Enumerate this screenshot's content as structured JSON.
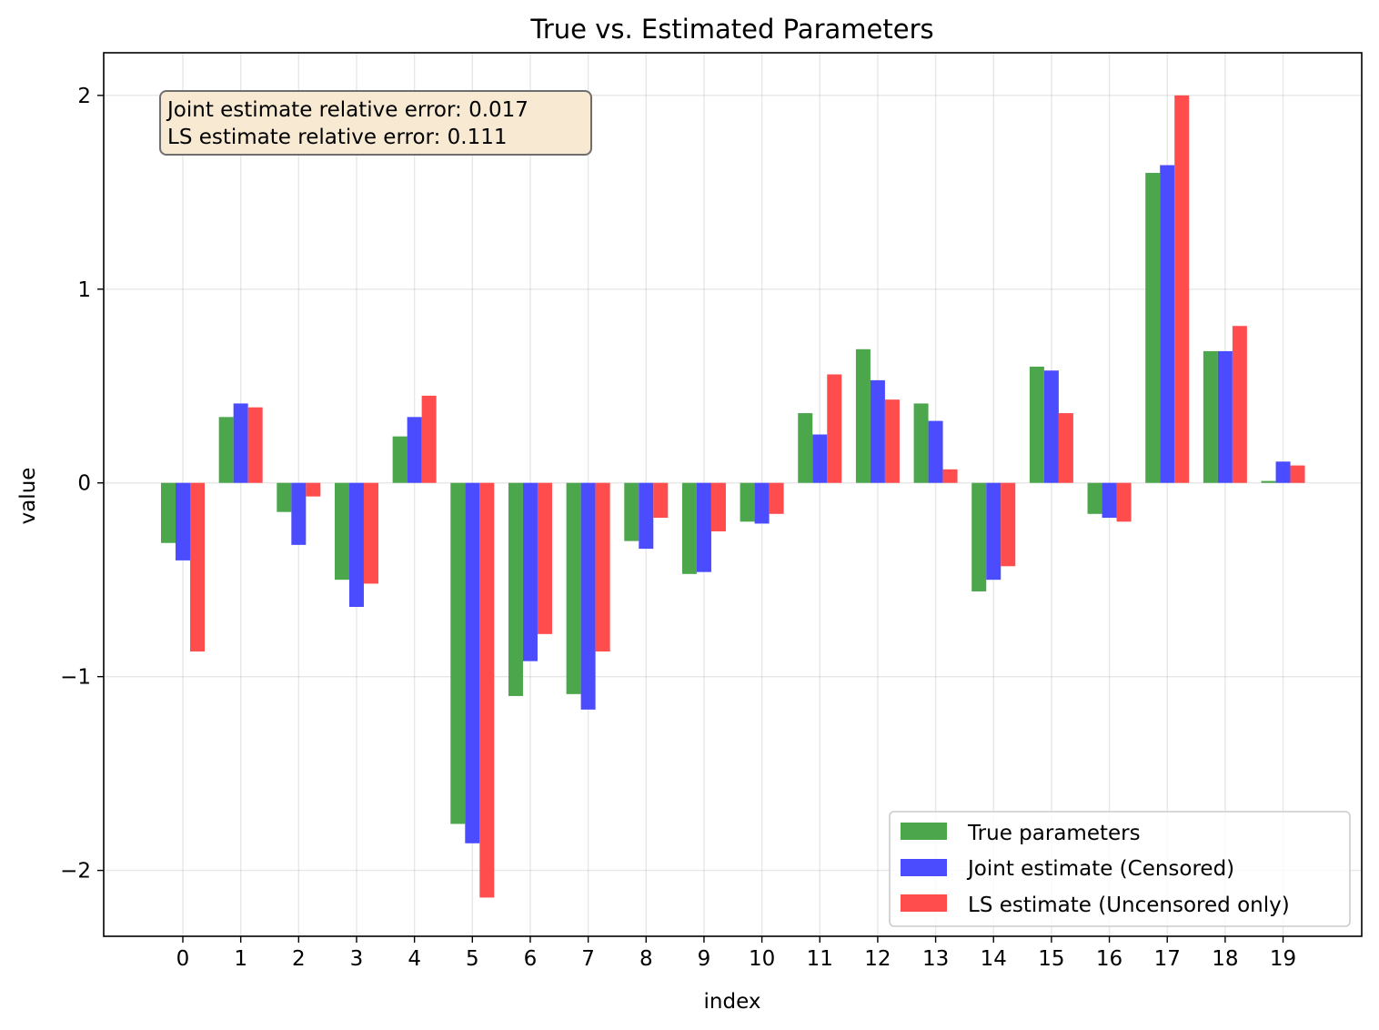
{
  "chart_data": {
    "type": "bar",
    "title": "True vs. Estimated Parameters",
    "xlabel": "index",
    "ylabel": "value",
    "categories": [
      "0",
      "1",
      "2",
      "3",
      "4",
      "5",
      "6",
      "7",
      "8",
      "9",
      "10",
      "11",
      "12",
      "13",
      "14",
      "15",
      "16",
      "17",
      "18",
      "19"
    ],
    "ylim": [
      -2.34,
      2.22
    ],
    "yticks": [
      2,
      1,
      0,
      -1,
      -2
    ],
    "ytick_labels": [
      "2",
      "1",
      "0",
      "−1",
      "−2"
    ],
    "grid": true,
    "legend_position": "lower-right",
    "series": [
      {
        "name": "True parameters",
        "color": "#4ca64c",
        "values": [
          -0.31,
          0.34,
          -0.15,
          -0.5,
          0.24,
          -1.76,
          -1.1,
          -1.09,
          -0.3,
          -0.47,
          -0.2,
          0.36,
          0.69,
          0.41,
          -0.56,
          0.6,
          -0.16,
          1.6,
          0.68,
          0.01
        ]
      },
      {
        "name": "Joint estimate (Censored)",
        "color": "#4c4cff",
        "values": [
          -0.4,
          0.41,
          -0.32,
          -0.64,
          0.34,
          -1.86,
          -0.92,
          -1.17,
          -0.34,
          -0.46,
          -0.21,
          0.25,
          0.53,
          0.32,
          -0.5,
          0.58,
          -0.18,
          1.64,
          0.68,
          0.11
        ]
      },
      {
        "name": "LS estimate (Uncensored only)",
        "color": "#ff4c4c",
        "values": [
          -0.87,
          0.39,
          -0.07,
          -0.52,
          0.45,
          -2.14,
          -0.78,
          -0.87,
          -0.18,
          -0.25,
          -0.16,
          0.56,
          0.43,
          0.07,
          -0.43,
          0.36,
          -0.2,
          2.0,
          0.81,
          0.09
        ]
      }
    ],
    "annotation": {
      "lines": [
        "Joint estimate relative error: 0.017",
        "LS estimate relative error: 0.111"
      ],
      "background": "#f7e9d2"
    }
  }
}
